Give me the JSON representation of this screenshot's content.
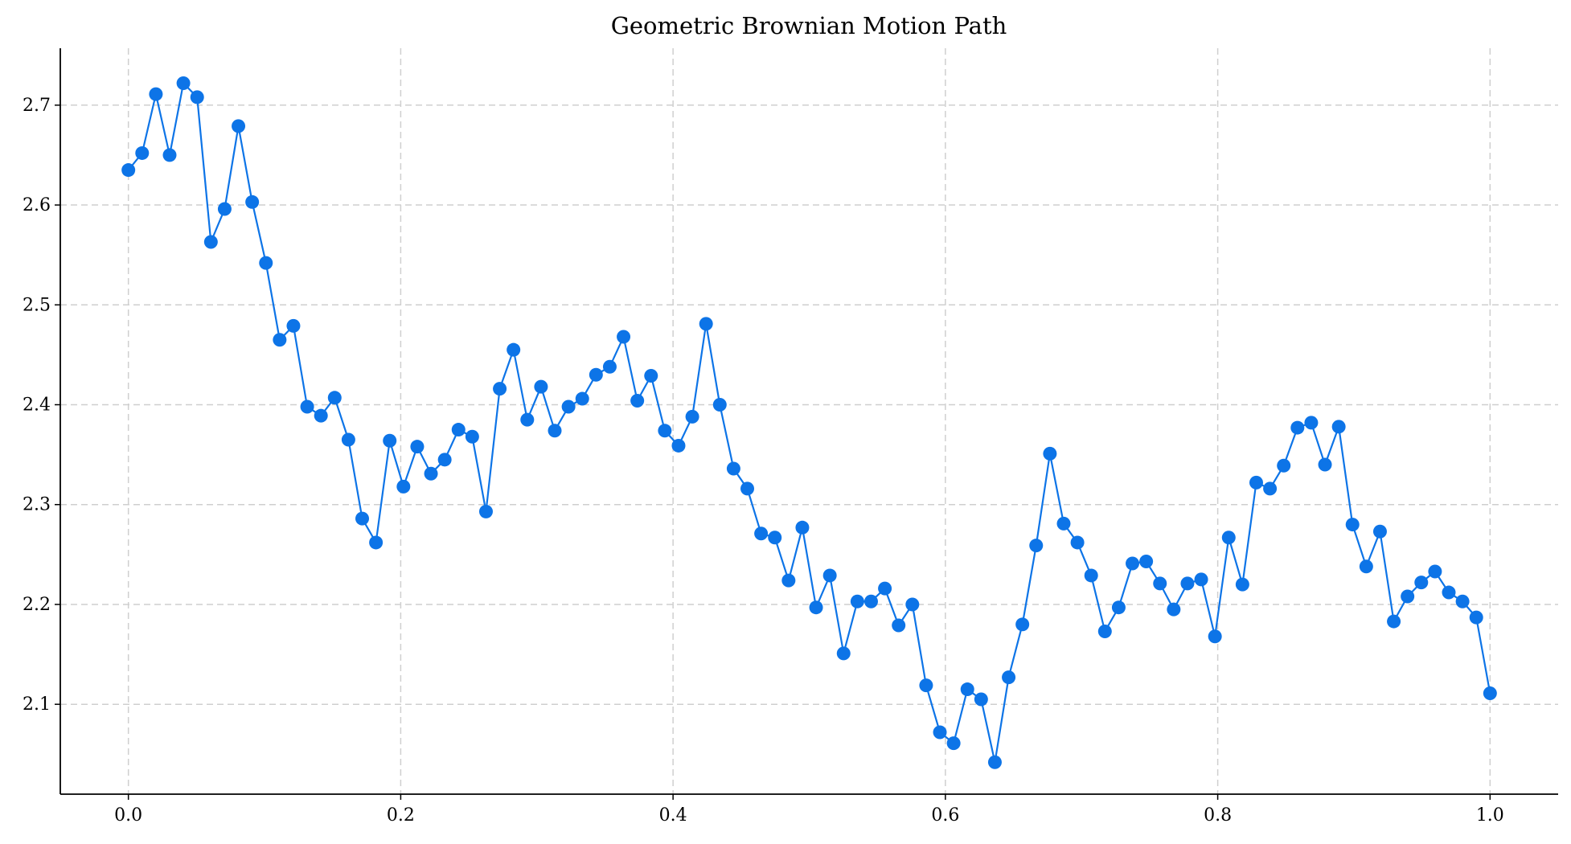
{
  "chart_data": {
    "type": "line",
    "title": "Geometric Brownian Motion Path",
    "xlabel": "",
    "ylabel": "",
    "xlim": [
      -0.05,
      1.05
    ],
    "ylim": [
      2.01,
      2.757
    ],
    "grid": true,
    "x_ticks": [
      0.0,
      0.2,
      0.4,
      0.6,
      0.8,
      1.0
    ],
    "x_tick_labels": [
      "0.0",
      "0.2",
      "0.4",
      "0.6",
      "0.8",
      "1.0"
    ],
    "y_ticks": [
      2.1,
      2.2,
      2.3,
      2.4,
      2.5,
      2.6,
      2.7
    ],
    "y_tick_labels": [
      "2.1",
      "2.2",
      "2.3",
      "2.4",
      "2.5",
      "2.6",
      "2.7"
    ],
    "line_color": "#0d74e7",
    "series": [
      {
        "values": [
          2.635,
          2.652,
          2.711,
          2.65,
          2.722,
          2.708,
          2.563,
          2.596,
          2.679,
          2.603,
          2.542,
          2.465,
          2.479,
          2.398,
          2.389,
          2.407,
          2.365,
          2.286,
          2.262,
          2.364,
          2.318,
          2.358,
          2.331,
          2.345,
          2.375,
          2.368,
          2.293,
          2.416,
          2.455,
          2.385,
          2.418,
          2.374,
          2.398,
          2.406,
          2.43,
          2.438,
          2.468,
          2.404,
          2.429,
          2.374,
          2.359,
          2.388,
          2.481,
          2.4,
          2.336,
          2.316,
          2.271,
          2.267,
          2.224,
          2.277,
          2.197,
          2.229,
          2.151,
          2.203,
          2.203,
          2.216,
          2.179,
          2.2,
          2.119,
          2.072,
          2.061,
          2.115,
          2.105,
          2.042,
          2.127,
          2.18,
          2.259,
          2.351,
          2.281,
          2.262,
          2.229,
          2.173,
          2.197,
          2.241,
          2.243,
          2.221,
          2.195,
          2.221,
          2.225,
          2.168,
          2.267,
          2.22,
          2.322,
          2.316,
          2.339,
          2.377,
          2.382,
          2.34,
          2.378,
          2.28,
          2.238,
          2.273,
          2.183,
          2.208,
          2.222,
          2.233,
          2.212,
          2.203,
          2.187,
          2.111
        ]
      }
    ]
  }
}
